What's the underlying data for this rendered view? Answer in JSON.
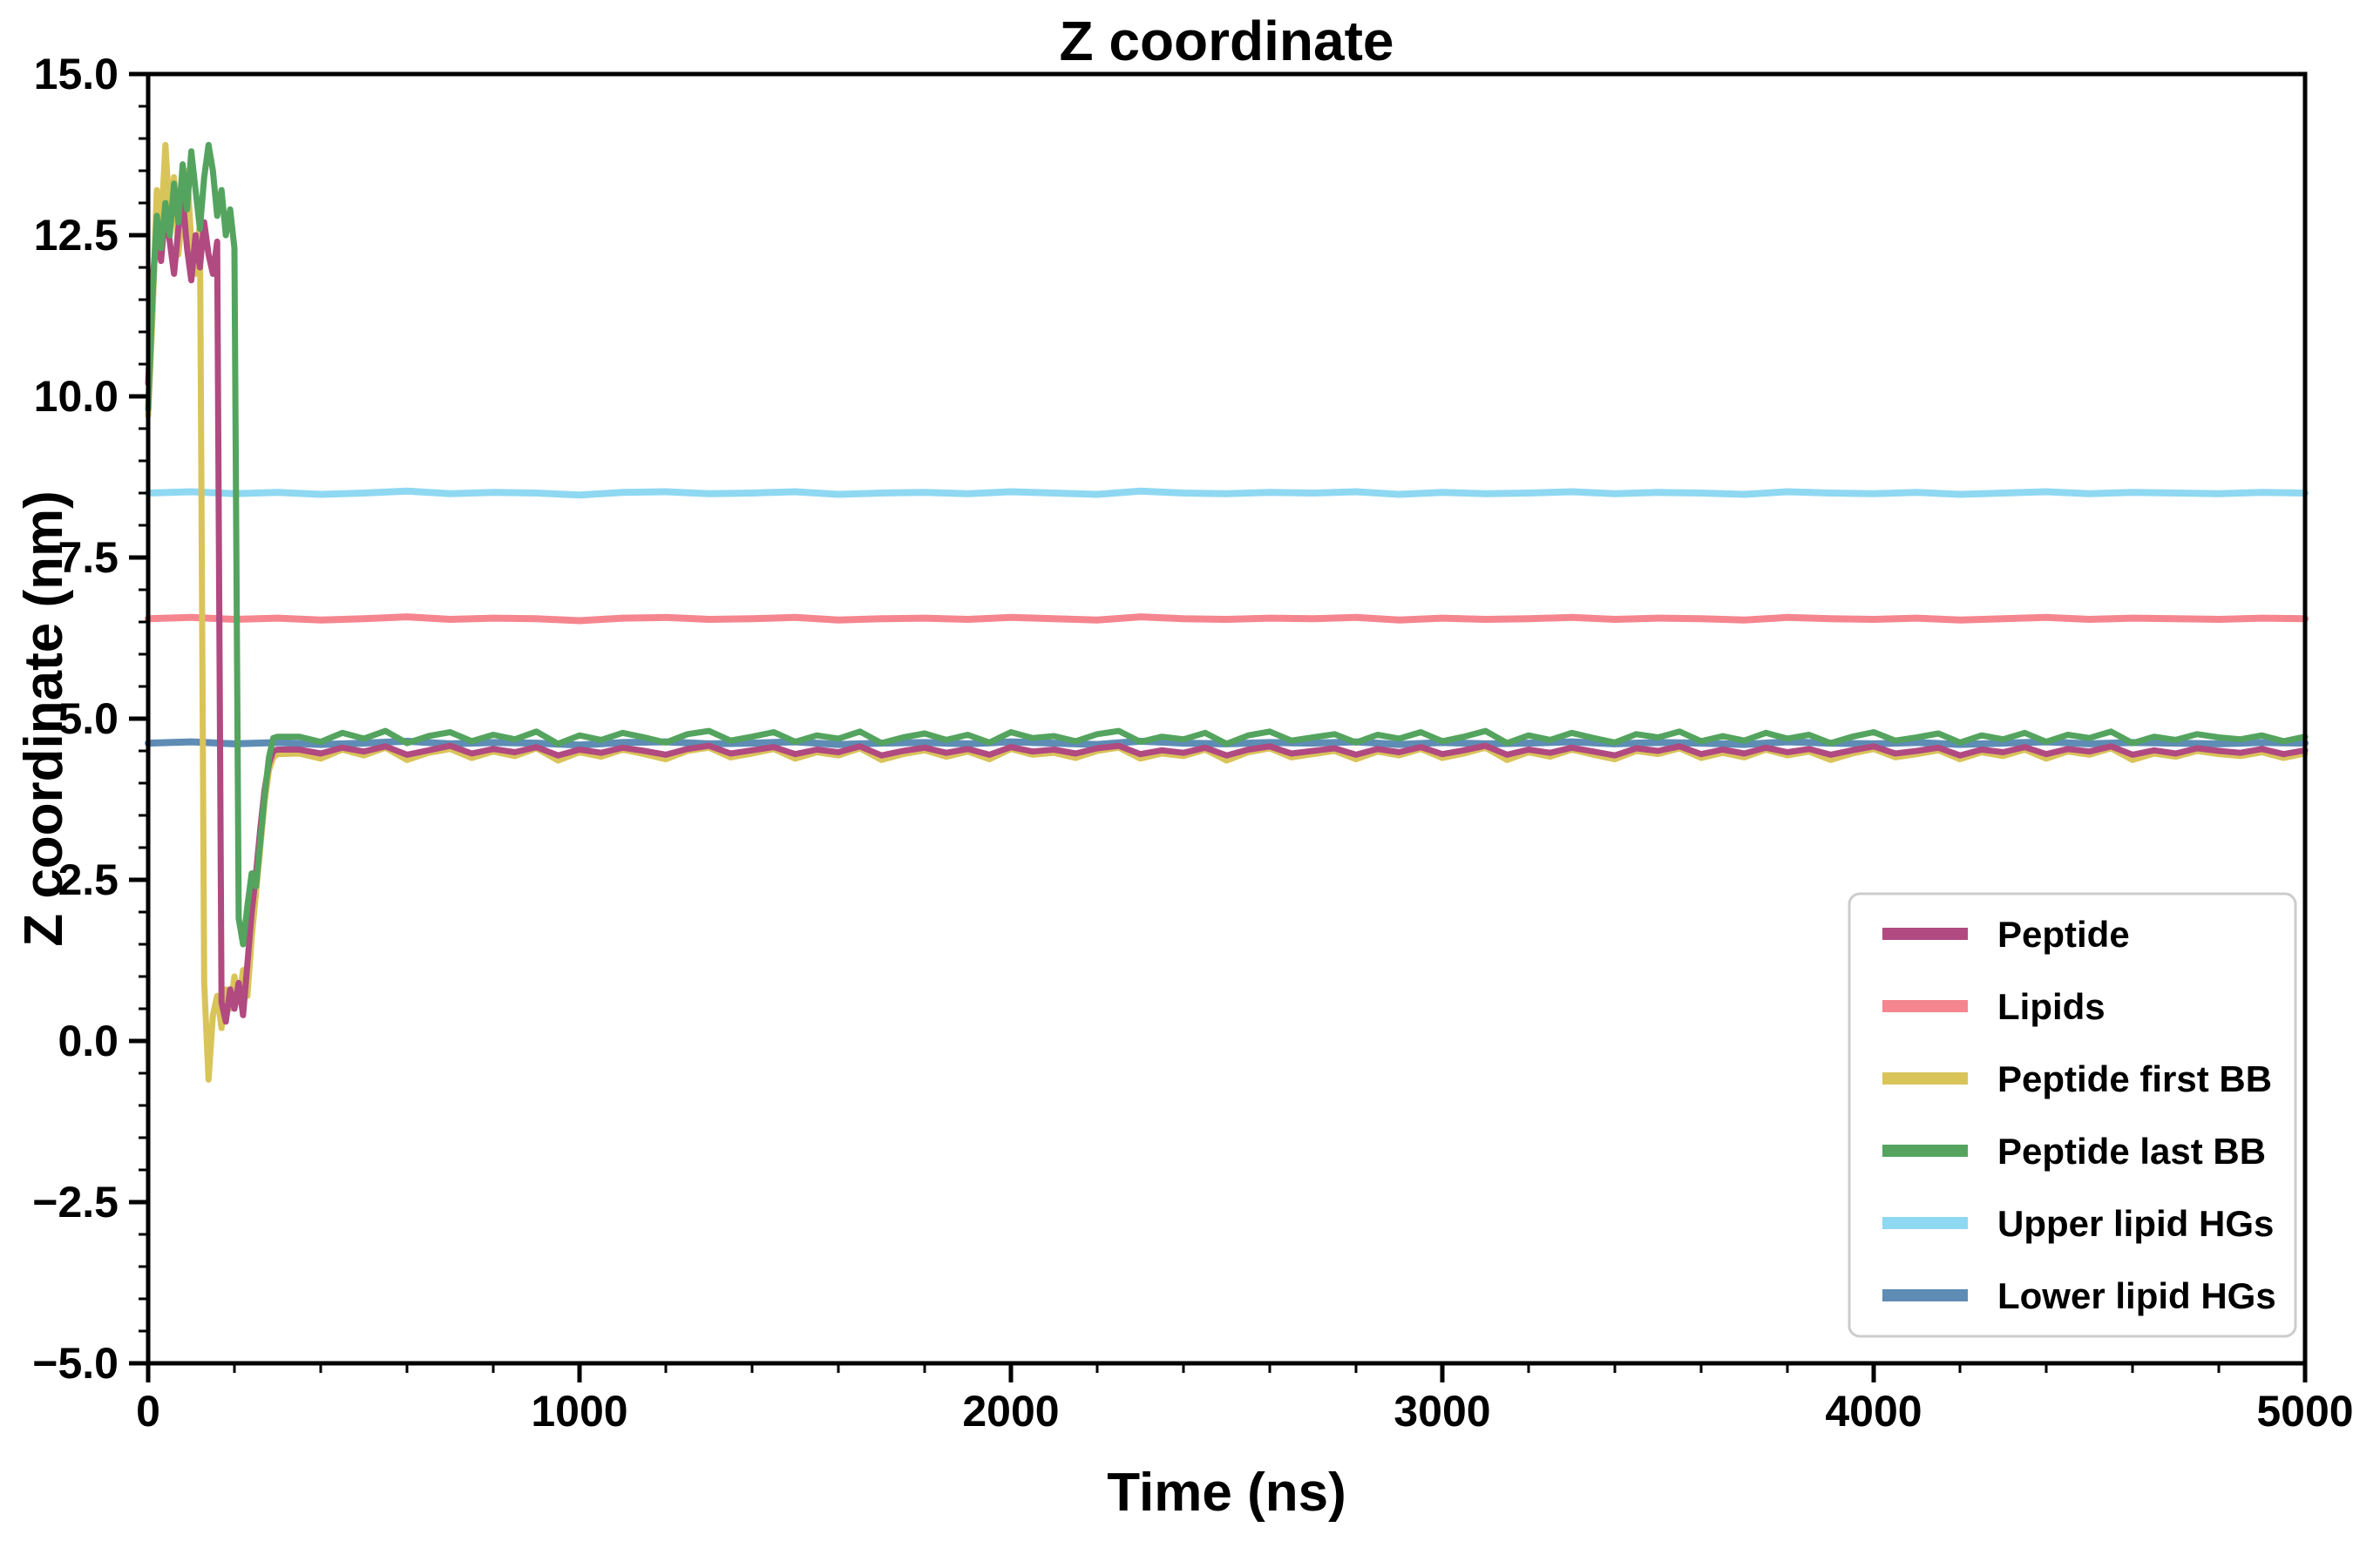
{
  "chart_data": {
    "type": "line",
    "title": "Z coordinate",
    "xlabel": "Time (ns)",
    "ylabel": "Z coordinate (nm)",
    "xlim": [
      0,
      5000
    ],
    "ylim": [
      -5.0,
      15.0
    ],
    "xticks": [
      0,
      1000,
      2000,
      3000,
      4000,
      5000
    ],
    "xtick_labels": [
      "0",
      "1000",
      "2000",
      "3000",
      "4000",
      "5000"
    ],
    "yticks": [
      -5.0,
      -2.5,
      0.0,
      2.5,
      5.0,
      7.5,
      10.0,
      12.5,
      15.0
    ],
    "ytick_labels": [
      "−5.0",
      "−2.5",
      "0.0",
      "2.5",
      "5.0",
      "7.5",
      "10.0",
      "12.5",
      "15.0"
    ],
    "minor_x_step": 200,
    "minor_y_step": 0.5,
    "grid": false,
    "legend": {
      "position": "lower-right-inside",
      "entries": [
        {
          "label": "Peptide",
          "color": "#b04a80"
        },
        {
          "label": "Lipids",
          "color": "#f5868f"
        },
        {
          "label": "Peptide first BB",
          "color": "#d9c45a"
        },
        {
          "label": "Peptide last BB",
          "color": "#54a45f"
        },
        {
          "label": "Upper lipid HGs",
          "color": "#8fd8f2"
        },
        {
          "label": "Lower lipid HGs",
          "color": "#5e8cb5"
        }
      ]
    },
    "x_arrays": {
      "flat": [
        0,
        100,
        200,
        300,
        400,
        500,
        600,
        700,
        800,
        900,
        1000,
        1100,
        1200,
        1300,
        1400,
        1500,
        1600,
        1700,
        1800,
        1900,
        2000,
        2100,
        2200,
        2300,
        2400,
        2500,
        2600,
        2700,
        2800,
        2900,
        3000,
        3100,
        3200,
        3300,
        3400,
        3500,
        3600,
        3700,
        3800,
        3900,
        4000,
        4100,
        4200,
        4300,
        4400,
        4500,
        4600,
        4700,
        4800,
        4900,
        5000
      ],
      "peptide": [
        0,
        10,
        20,
        30,
        40,
        50,
        60,
        70,
        80,
        90,
        100,
        110,
        120,
        130,
        140,
        150,
        160,
        170,
        180,
        190,
        200,
        210,
        220,
        230,
        240,
        250,
        260,
        270,
        280,
        290,
        300,
        350,
        400,
        450,
        500,
        550,
        600,
        650,
        700,
        750,
        800,
        850,
        900,
        950,
        1000,
        1050,
        1100,
        1150,
        1200,
        1250,
        1300,
        1350,
        1400,
        1450,
        1500,
        1550,
        1600,
        1650,
        1700,
        1750,
        1800,
        1850,
        1900,
        1950,
        2000,
        2050,
        2100,
        2150,
        2200,
        2250,
        2300,
        2350,
        2400,
        2450,
        2500,
        2550,
        2600,
        2650,
        2700,
        2750,
        2800,
        2850,
        2900,
        2950,
        3000,
        3050,
        3100,
        3150,
        3200,
        3250,
        3300,
        3350,
        3400,
        3450,
        3500,
        3550,
        3600,
        3650,
        3700,
        3750,
        3800,
        3850,
        3900,
        3950,
        4000,
        4050,
        4100,
        4150,
        4200,
        4250,
        4300,
        4350,
        4400,
        4450,
        4500,
        4550,
        4600,
        4650,
        4700,
        4750,
        4800,
        4850,
        4900,
        4950,
        5000
      ]
    },
    "draw_order": [
      4,
      1,
      5,
      2,
      0,
      3
    ],
    "series": [
      {
        "name": "Peptide",
        "color": "#b04a80",
        "linewidth": 7,
        "x_ref": "peptide",
        "y": [
          10.2,
          11.8,
          12.5,
          12.1,
          12.9,
          12.4,
          11.9,
          12.6,
          13.1,
          12.3,
          11.8,
          12.5,
          12.0,
          12.7,
          12.2,
          11.9,
          12.4,
          0.6,
          0.3,
          0.8,
          0.5,
          0.9,
          0.4,
          1.2,
          2.0,
          2.6,
          3.3,
          3.9,
          4.3,
          4.5,
          4.52,
          4.52,
          4.46,
          4.55,
          4.49,
          4.57,
          4.44,
          4.51,
          4.58,
          4.46,
          4.53,
          4.48,
          4.56,
          4.43,
          4.52,
          4.47,
          4.55,
          4.5,
          4.44,
          4.53,
          4.58,
          4.46,
          4.51,
          4.56,
          4.45,
          4.52,
          4.48,
          4.57,
          4.43,
          4.5,
          4.55,
          4.47,
          4.53,
          4.44,
          4.56,
          4.49,
          4.52,
          4.46,
          4.54,
          4.58,
          4.45,
          4.51,
          4.47,
          4.55,
          4.43,
          4.52,
          4.57,
          4.46,
          4.5,
          4.54,
          4.44,
          4.53,
          4.48,
          4.56,
          4.45,
          4.51,
          4.58,
          4.44,
          4.52,
          4.47,
          4.55,
          4.49,
          4.43,
          4.54,
          4.5,
          4.57,
          4.45,
          4.52,
          4.46,
          4.55,
          4.48,
          4.53,
          4.44,
          4.51,
          4.57,
          4.46,
          4.5,
          4.55,
          4.43,
          4.52,
          4.48,
          4.56,
          4.45,
          4.53,
          4.49,
          4.57,
          4.44,
          4.51,
          4.46,
          4.54,
          4.5,
          4.47,
          4.53,
          4.45,
          4.51
        ]
      },
      {
        "name": "Lipids",
        "color": "#f5868f",
        "linewidth": 8,
        "x_ref": "flat",
        "y": [
          6.55,
          6.57,
          6.54,
          6.56,
          6.53,
          6.55,
          6.58,
          6.54,
          6.56,
          6.55,
          6.52,
          6.56,
          6.57,
          6.54,
          6.55,
          6.57,
          6.53,
          6.55,
          6.56,
          6.54,
          6.57,
          6.55,
          6.53,
          6.58,
          6.55,
          6.54,
          6.56,
          6.55,
          6.57,
          6.53,
          6.56,
          6.54,
          6.55,
          6.57,
          6.54,
          6.56,
          6.55,
          6.53,
          6.57,
          6.55,
          6.54,
          6.56,
          6.53,
          6.55,
          6.57,
          6.54,
          6.56,
          6.55,
          6.54,
          6.56,
          6.55
        ]
      },
      {
        "name": "Peptide first BB",
        "color": "#d9c45a",
        "linewidth": 7,
        "x_ref": "peptide",
        "y": [
          9.7,
          11.2,
          13.2,
          12.6,
          13.9,
          12.8,
          13.4,
          12.2,
          12.9,
          13.5,
          12.4,
          11.9,
          12.7,
          0.9,
          -0.6,
          0.4,
          0.7,
          0.2,
          0.8,
          0.5,
          1.0,
          0.6,
          1.1,
          0.7,
          1.6,
          2.3,
          3.0,
          3.7,
          4.2,
          4.4,
          4.45,
          4.46,
          4.38,
          4.52,
          4.43,
          4.55,
          4.36,
          4.47,
          4.53,
          4.39,
          4.49,
          4.42,
          4.54,
          4.35,
          4.48,
          4.41,
          4.52,
          4.45,
          4.37,
          4.5,
          4.55,
          4.4,
          4.46,
          4.53,
          4.38,
          4.48,
          4.43,
          4.54,
          4.36,
          4.45,
          4.51,
          4.41,
          4.49,
          4.37,
          4.53,
          4.44,
          4.47,
          4.39,
          4.5,
          4.55,
          4.38,
          4.46,
          4.42,
          4.52,
          4.35,
          4.48,
          4.54,
          4.4,
          4.45,
          4.5,
          4.37,
          4.49,
          4.43,
          4.53,
          4.39,
          4.46,
          4.55,
          4.36,
          4.48,
          4.41,
          4.52,
          4.44,
          4.37,
          4.5,
          4.45,
          4.54,
          4.39,
          4.47,
          4.4,
          4.52,
          4.43,
          4.49,
          4.36,
          4.46,
          4.53,
          4.4,
          4.45,
          4.51,
          4.37,
          4.48,
          4.42,
          4.52,
          4.38,
          4.49,
          4.44,
          4.54,
          4.36,
          4.46,
          4.41,
          4.5,
          4.45,
          4.42,
          4.48,
          4.39,
          4.46
        ]
      },
      {
        "name": "Peptide last BB",
        "color": "#54a45f",
        "linewidth": 7,
        "x_ref": "peptide",
        "y": [
          9.8,
          11.5,
          12.8,
          12.3,
          13.0,
          12.5,
          13.3,
          12.7,
          13.6,
          12.9,
          13.8,
          13.2,
          12.6,
          13.4,
          13.9,
          13.5,
          12.8,
          13.2,
          12.5,
          12.9,
          12.3,
          1.9,
          1.5,
          2.1,
          2.6,
          2.4,
          3.1,
          3.8,
          4.4,
          4.7,
          4.72,
          4.72,
          4.64,
          4.78,
          4.69,
          4.81,
          4.62,
          4.73,
          4.79,
          4.65,
          4.75,
          4.68,
          4.8,
          4.61,
          4.74,
          4.67,
          4.78,
          4.71,
          4.63,
          4.76,
          4.81,
          4.66,
          4.72,
          4.79,
          4.64,
          4.74,
          4.69,
          4.8,
          4.62,
          4.71,
          4.77,
          4.67,
          4.75,
          4.63,
          4.79,
          4.7,
          4.73,
          4.65,
          4.76,
          4.81,
          4.64,
          4.72,
          4.68,
          4.78,
          4.61,
          4.74,
          4.8,
          4.66,
          4.71,
          4.76,
          4.63,
          4.75,
          4.69,
          4.79,
          4.65,
          4.72,
          4.81,
          4.62,
          4.74,
          4.67,
          4.78,
          4.7,
          4.63,
          4.76,
          4.71,
          4.8,
          4.65,
          4.73,
          4.66,
          4.78,
          4.69,
          4.75,
          4.62,
          4.72,
          4.79,
          4.66,
          4.71,
          4.77,
          4.63,
          4.74,
          4.68,
          4.78,
          4.64,
          4.75,
          4.7,
          4.8,
          4.62,
          4.72,
          4.67,
          4.76,
          4.71,
          4.68,
          4.74,
          4.65,
          4.72
        ]
      },
      {
        "name": "Upper lipid HGs",
        "color": "#8fd8f2",
        "linewidth": 8,
        "x_ref": "flat",
        "y": [
          8.5,
          8.52,
          8.49,
          8.51,
          8.48,
          8.5,
          8.53,
          8.49,
          8.51,
          8.5,
          8.47,
          8.51,
          8.52,
          8.49,
          8.5,
          8.52,
          8.48,
          8.5,
          8.51,
          8.49,
          8.52,
          8.5,
          8.48,
          8.53,
          8.5,
          8.49,
          8.51,
          8.5,
          8.52,
          8.48,
          8.51,
          8.49,
          8.5,
          8.52,
          8.49,
          8.51,
          8.5,
          8.48,
          8.52,
          8.5,
          8.49,
          8.51,
          8.48,
          8.5,
          8.52,
          8.49,
          8.51,
          8.5,
          8.49,
          8.51,
          8.5
        ]
      },
      {
        "name": "Lower lipid HGs",
        "color": "#5e8cb5",
        "linewidth": 8,
        "x_ref": "flat",
        "y": [
          4.62,
          4.64,
          4.61,
          4.63,
          4.6,
          4.62,
          4.65,
          4.61,
          4.63,
          4.62,
          4.59,
          4.63,
          4.64,
          4.61,
          4.62,
          4.64,
          4.6,
          4.62,
          4.63,
          4.61,
          4.64,
          4.62,
          4.6,
          4.65,
          4.62,
          4.61,
          4.63,
          4.62,
          4.64,
          4.6,
          4.63,
          4.61,
          4.62,
          4.64,
          4.61,
          4.63,
          4.62,
          4.6,
          4.64,
          4.62,
          4.61,
          4.63,
          4.6,
          4.62,
          4.64,
          4.61,
          4.63,
          4.62,
          4.61,
          4.63,
          4.62
        ]
      }
    ]
  }
}
